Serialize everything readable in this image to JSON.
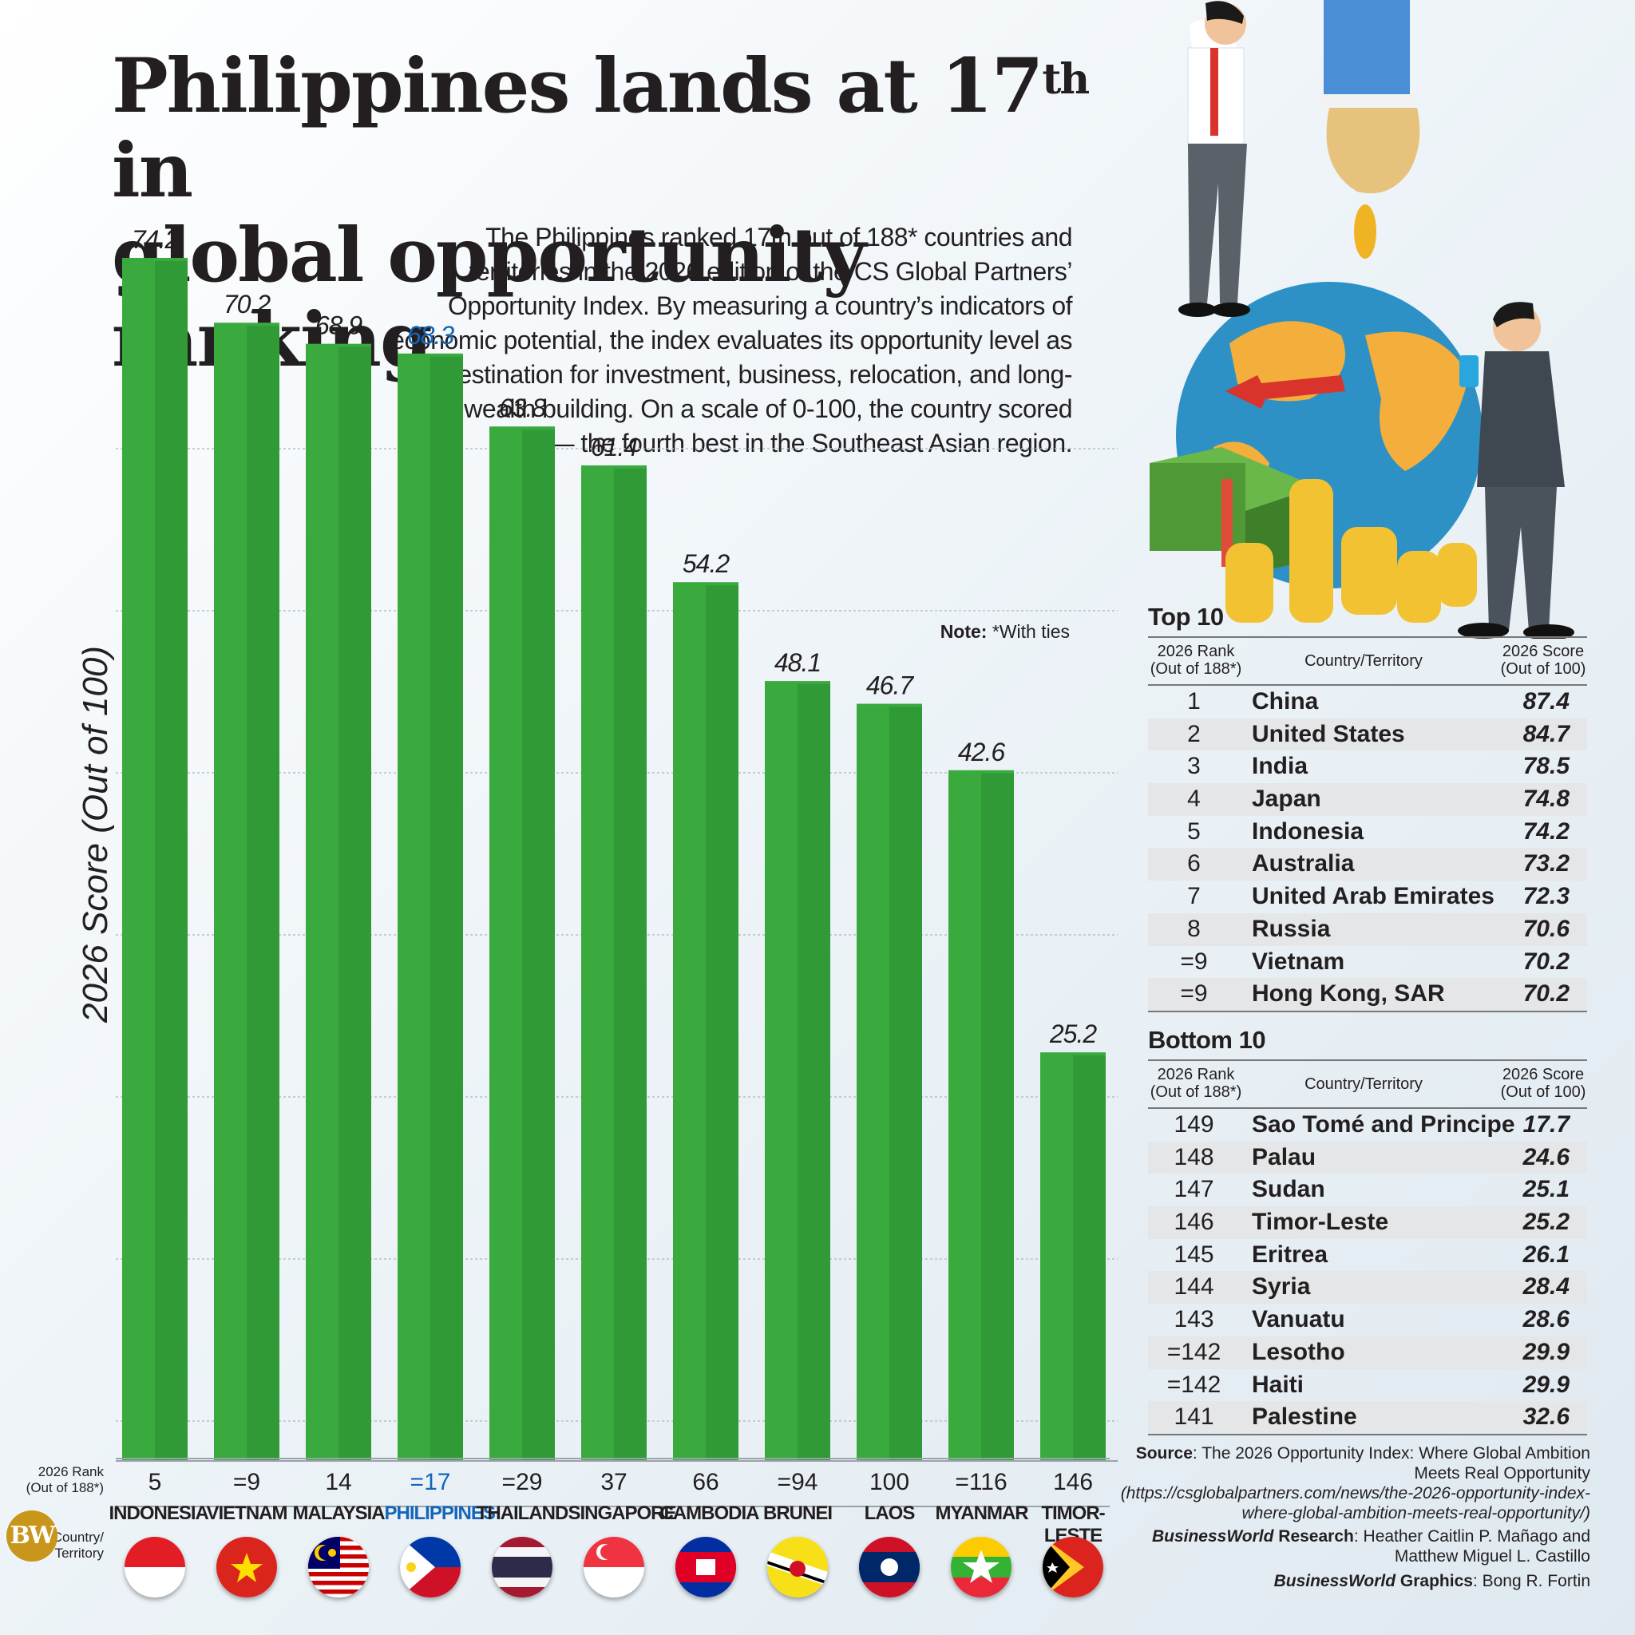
{
  "title": {
    "line1_pre": "Philippines lands at 17",
    "line1_sup": "th",
    "line1_post": " in",
    "line2": "global opportunity ranking"
  },
  "intro": "The Philippines ranked 17th out of 188* countries and territories in the 2026 edition of the CS Global Partners’ Opportunity Index. By measuring a country’s indicators of economic potential, the index evaluates its opportunity level as a destination for investment, business, relocation, and long-term wealth building. On a scale of 0-100, the country scored 68.3 — the fourth best in the Southeast Asian region.",
  "note": {
    "label": "Note:",
    "text": " *With ties"
  },
  "chart_data": {
    "type": "bar",
    "ylabel": "2026 Score (Out of 100)",
    "ylim": [
      0,
      74.2
    ],
    "grid": true,
    "categories": [
      "INDONESIA",
      "VIETNAM",
      "MALAYSIA",
      "PHILIPPINES",
      "THAILAND",
      "SINGAPORE",
      "CAMBODIA",
      "BRUNEI",
      "LAOS",
      "MYANMAR",
      "TIMOR-LESTE"
    ],
    "values": [
      74.2,
      70.2,
      68.9,
      68.3,
      63.8,
      61.4,
      54.2,
      48.1,
      46.7,
      42.6,
      25.2
    ],
    "value_labels": [
      "74.2",
      "70.2",
      "68.9",
      "68.3",
      "63.8",
      "61.4",
      "54.2",
      "48.1",
      "46.7",
      "42.6",
      "25.2"
    ],
    "ranks": [
      "5",
      "=9",
      "14",
      "=17",
      "=29",
      "37",
      "66",
      "=94",
      "100",
      "=116",
      "146"
    ],
    "highlight": "PHILIPPINES",
    "bar_color": "#3aaa3f",
    "highlight_color": "#1565b8"
  },
  "axis_rows": {
    "rank_label": "2026 Rank (Out of 188*)",
    "country_label": "Country/ Territory"
  },
  "flags": [
    "indonesia-flag-icon",
    "vietnam-flag-icon",
    "malaysia-flag-icon",
    "philippines-flag-icon",
    "thailand-flag-icon",
    "singapore-flag-icon",
    "cambodia-flag-icon",
    "brunei-flag-icon",
    "laos-flag-icon",
    "myanmar-flag-icon",
    "timor-leste-flag-icon"
  ],
  "top10": {
    "title": "Top 10",
    "headers": {
      "rank": "2026 Rank (Out of 188*)",
      "country": "Country/Territory",
      "score": "2026 Score (Out of 100)"
    },
    "rows": [
      {
        "rank": "1",
        "country": "China",
        "score": "87.4"
      },
      {
        "rank": "2",
        "country": "United States",
        "score": "84.7"
      },
      {
        "rank": "3",
        "country": "India",
        "score": "78.5"
      },
      {
        "rank": "4",
        "country": "Japan",
        "score": "74.8"
      },
      {
        "rank": "5",
        "country": "Indonesia",
        "score": "74.2"
      },
      {
        "rank": "6",
        "country": "Australia",
        "score": "73.2"
      },
      {
        "rank": "7",
        "country": "United Arab Emirates",
        "score": "72.3"
      },
      {
        "rank": "8",
        "country": "Russia",
        "score": "70.6"
      },
      {
        "rank": "=9",
        "country": "Vietnam",
        "score": "70.2"
      },
      {
        "rank": "=9",
        "country": "Hong Kong, SAR",
        "score": "70.2"
      }
    ]
  },
  "bottom10": {
    "title": "Bottom 10",
    "headers": {
      "rank": "2026 Rank (Out of 188*)",
      "country": "Country/Territory",
      "score": "2026 Score (Out of 100)"
    },
    "rows": [
      {
        "rank": "149",
        "country": "Sao Tomé and Principe",
        "score": "17.7"
      },
      {
        "rank": "148",
        "country": "Palau",
        "score": "24.6"
      },
      {
        "rank": "147",
        "country": "Sudan",
        "score": "25.1"
      },
      {
        "rank": "146",
        "country": "Timor-Leste",
        "score": "25.2"
      },
      {
        "rank": "145",
        "country": "Eritrea",
        "score": "26.1"
      },
      {
        "rank": "144",
        "country": "Syria",
        "score": "28.4"
      },
      {
        "rank": "143",
        "country": "Vanuatu",
        "score": "28.6"
      },
      {
        "rank": "=142",
        "country": "Lesotho",
        "score": "29.9"
      },
      {
        "rank": "=142",
        "country": "Haiti",
        "score": "29.9"
      },
      {
        "rank": "141",
        "country": "Palestine",
        "score": "32.6"
      }
    ]
  },
  "source": {
    "label": "Source",
    "text": ": The 2026 Opportunity Index: Where Global Ambition Meets Real Opportunity",
    "url": "(https://csglobalpartners.com/news/the-2026-opportunity-index-where-global-ambition-meets-real-opportunity/)",
    "research_brand": "BusinessWorld",
    "research_label": " Research",
    "research_names": ": Heather Caitlin P. Mañago and Matthew Miguel L. Castillo",
    "graphics_brand": "BusinessWorld",
    "graphics_label": " Graphics",
    "graphics_names": ": Bong R. Fortin"
  },
  "logo": "BW"
}
